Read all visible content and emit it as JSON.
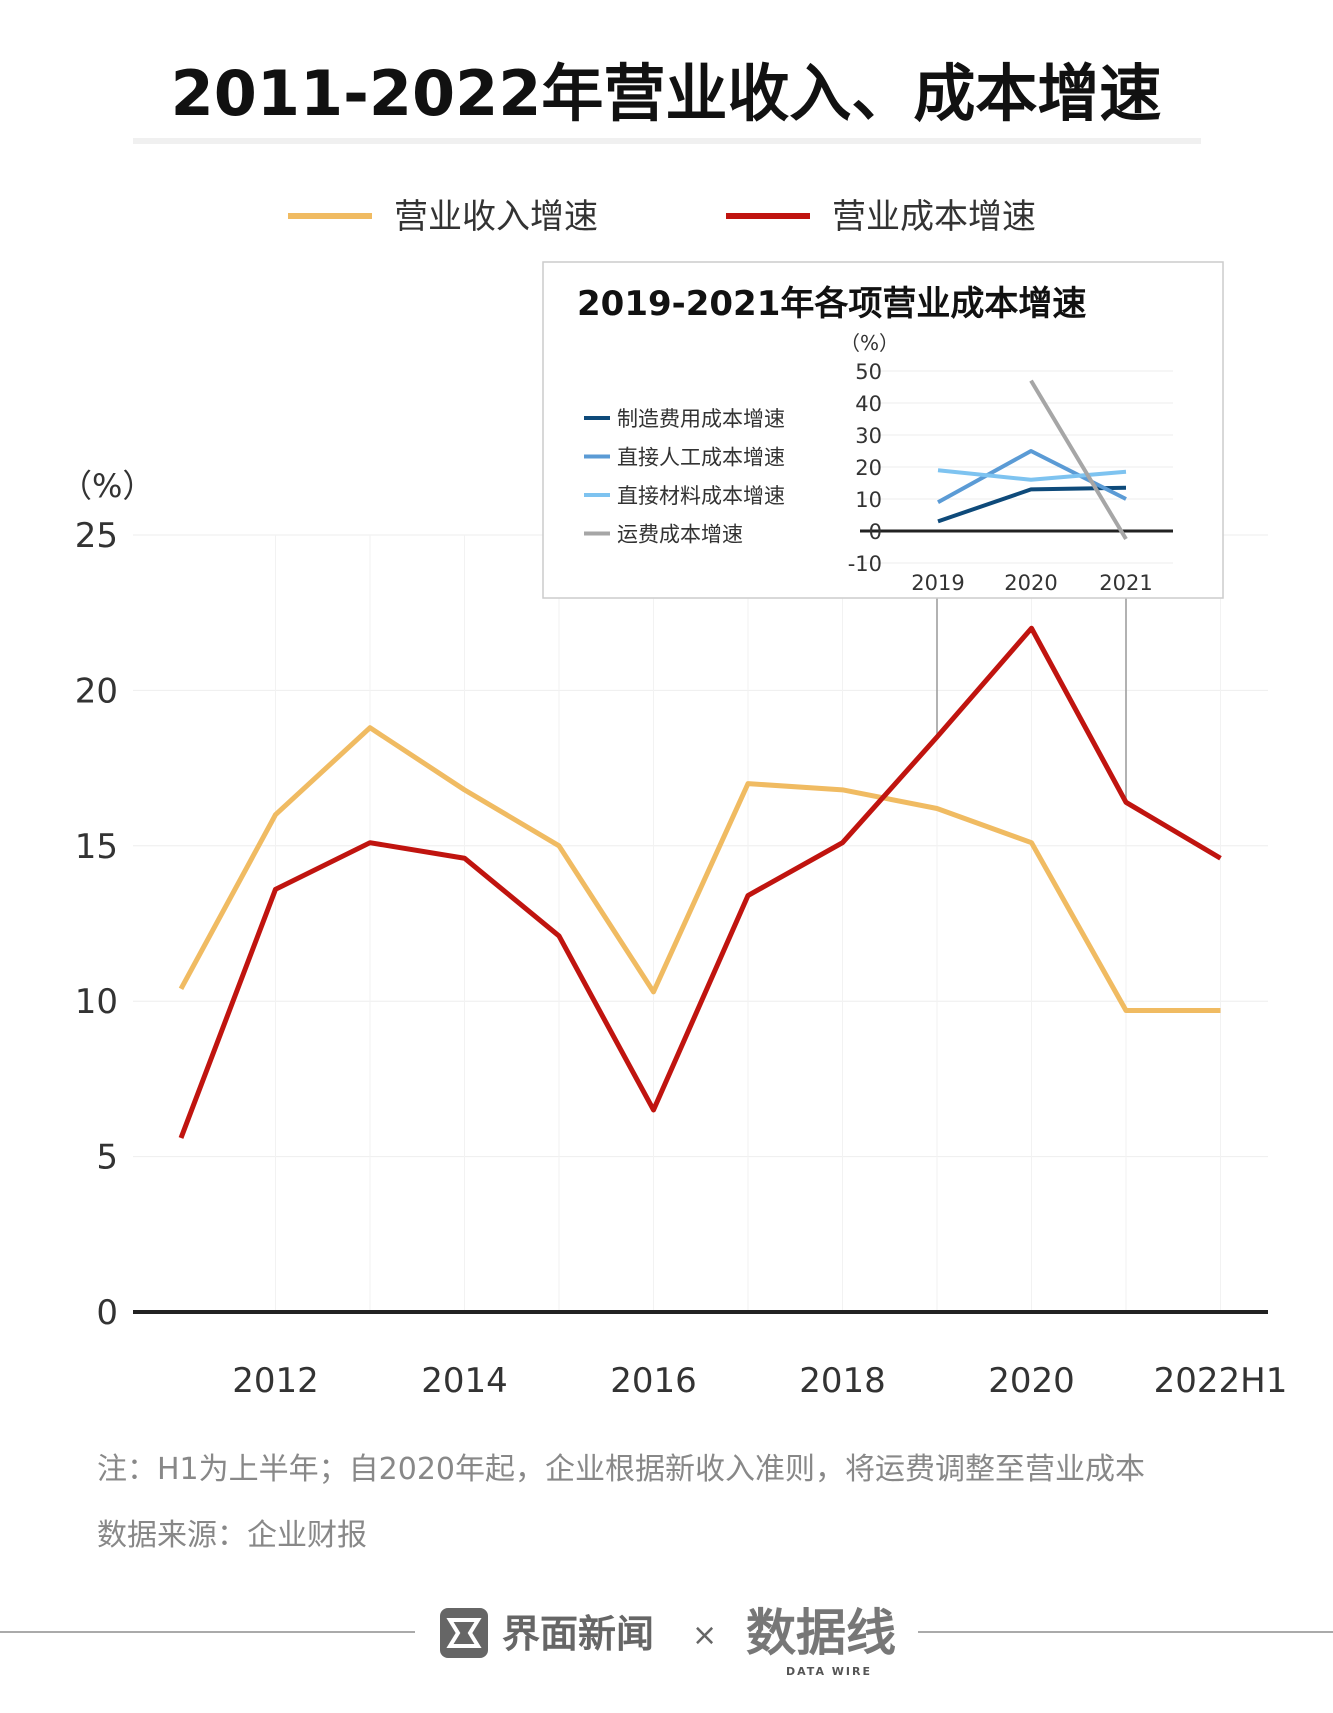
{
  "title": "2011-2022年营业收入、成本增速",
  "colors": {
    "revenue": "#f0bb62",
    "cost": "#c0140f",
    "mfg": "#0e4a7a",
    "labor": "#5b9bd5",
    "material": "#7ec3f0",
    "freight": "#a6a6a6"
  },
  "chart_data": [
    {
      "type": "line",
      "title": "2011-2022年营业收入、成本增速",
      "ylabel": "（%）",
      "ylim": [
        0,
        25
      ],
      "yticks": [
        0,
        5,
        10,
        15,
        20,
        25
      ],
      "x": [
        "2011",
        "2012",
        "2013",
        "2014",
        "2015",
        "2016",
        "2017",
        "2018",
        "2019",
        "2020",
        "2021",
        "2022H1"
      ],
      "xtick_labels": [
        "2012",
        "2014",
        "2016",
        "2018",
        "2020",
        "2022H1"
      ],
      "grid": true,
      "legend": "top",
      "series": [
        {
          "name": "营业收入增速",
          "values": [
            10.4,
            16.0,
            18.8,
            16.8,
            15.0,
            10.3,
            17.0,
            16.8,
            16.2,
            15.1,
            9.7,
            9.7
          ]
        },
        {
          "name": "营业成本增速",
          "values": [
            5.6,
            13.6,
            15.1,
            14.6,
            12.1,
            6.5,
            13.4,
            15.1,
            18.5,
            22.0,
            16.4,
            14.6
          ]
        }
      ]
    },
    {
      "type": "line",
      "title": "2019-2021年各项营业成本增速",
      "ylabel": "（%）",
      "ylim": [
        -10,
        50
      ],
      "yticks": [
        -10,
        0,
        10,
        20,
        30,
        40,
        50
      ],
      "x": [
        "2019",
        "2020",
        "2021"
      ],
      "grid": true,
      "legend": "left",
      "series": [
        {
          "name": "制造费用成本增速",
          "values": [
            3,
            13,
            13.5
          ]
        },
        {
          "name": "直接人工成本增速",
          "values": [
            9,
            25,
            10
          ]
        },
        {
          "name": "直接材料成本增速",
          "values": [
            19,
            16,
            18.5
          ]
        },
        {
          "name": "运费成本增速",
          "values": [
            null,
            47,
            -2.5
          ]
        }
      ]
    }
  ],
  "footer": {
    "note": "注：H1为上半年；自2020年起，企业根据新收入准则，将运费调整至营业成本",
    "source": "数据来源：企业财报",
    "brand1": "界面新闻",
    "times": "×",
    "brand2": "数据线",
    "brand2_sub": "DATA WIRE"
  }
}
